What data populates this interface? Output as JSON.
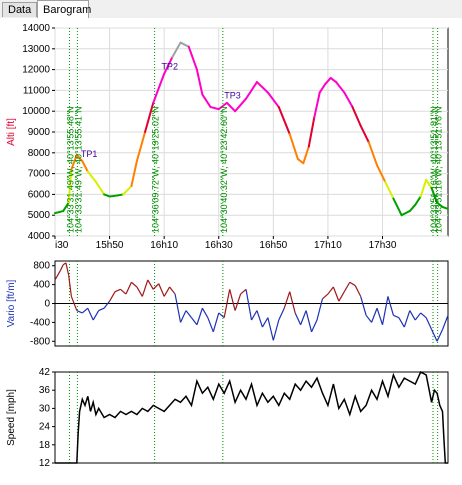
{
  "tabs": [
    {
      "label": "Data",
      "active": false
    },
    {
      "label": "Barogram",
      "active": true
    }
  ],
  "colors": {
    "low": "#00a000",
    "mid_low": "#d8f000",
    "mid": "#ff8000",
    "high": "#e00030",
    "higher": "#ff00c8",
    "peak": "#a0a0a0",
    "climb": "#a01818",
    "sink": "#1e32b4",
    "speed": "#000000",
    "event_line": "#009000",
    "tp_label": "#4000a0"
  },
  "chart_data": [
    {
      "type": "line",
      "name": "altitude",
      "ylabel": "Alti [ft]",
      "ylim": [
        4000,
        14000
      ],
      "yticks": [
        4000,
        5000,
        6000,
        7000,
        8000,
        9000,
        10000,
        11000,
        12000,
        13000,
        14000
      ],
      "xticks": [
        "i30",
        "15h50",
        "16h10",
        "16h30",
        "16h50",
        "17h10",
        "17h30"
      ],
      "grid": true,
      "x_minutes": [
        0,
        3,
        5,
        6,
        8,
        10,
        12,
        15,
        18,
        20,
        23,
        25,
        28,
        30,
        33,
        36,
        40,
        43,
        46,
        49,
        52,
        54,
        57,
        60,
        63,
        66,
        70,
        74,
        78,
        82,
        86,
        89,
        91,
        93,
        95,
        97,
        99,
        101,
        103,
        106,
        109,
        112,
        115,
        118,
        121,
        124,
        127,
        130,
        132,
        134,
        136,
        138,
        140,
        142,
        144
      ],
      "y_ft": [
        5100,
        5200,
        5600,
        7200,
        7900,
        7600,
        7100,
        6600,
        6000,
        5900,
        5950,
        6000,
        6400,
        7600,
        9000,
        10400,
        11800,
        12600,
        13300,
        13100,
        12000,
        10800,
        10200,
        10100,
        10400,
        10000,
        10600,
        11400,
        10900,
        10200,
        8900,
        7700,
        7500,
        8300,
        9700,
        10900,
        11300,
        11600,
        11400,
        10900,
        10200,
        9300,
        8500,
        7400,
        6600,
        5800,
        5000,
        5200,
        5500,
        5900,
        6700,
        6300,
        5600,
        5400,
        5300
      ],
      "event_lines": [
        {
          "x_minutes": 5.3,
          "label": "104°33'31.49\"W, 40°13'55.48\"N"
        },
        {
          "x_minutes": 8.2,
          "label": "104°33'31.49\"W, 40°13'55.41\"N"
        },
        {
          "x_minutes": 36.5,
          "label": "104°36'09.72\"W, 40°19'25.02\"N"
        },
        {
          "x_minutes": 61.5,
          "label": "104°30'40.32\"W, 40°23'42.60\"N"
        },
        {
          "x_minutes": 138.5,
          "label": "104°33'51.16\"W, 40°13'51.81\"N"
        },
        {
          "x_minutes": 140.2,
          "label": "104°33'51.16\"W, 40°13'51.76\"N"
        }
      ],
      "turnpoints": [
        {
          "label": "TP1",
          "x_minutes": 9.5,
          "y_ft": 7800
        },
        {
          "label": "TP2",
          "x_minutes": 39.0,
          "y_ft": 12000
        },
        {
          "label": "TP3",
          "x_minutes": 62.0,
          "y_ft": 10600
        }
      ]
    },
    {
      "type": "line",
      "name": "vario",
      "ylabel": "Vario [ft/m]",
      "ylim": [
        -900,
        900
      ],
      "yticks": [
        -800,
        -400,
        0,
        400,
        800
      ],
      "x_minutes": [
        0,
        2,
        3,
        4,
        5,
        6,
        8,
        10,
        12,
        14,
        16,
        18,
        20,
        22,
        24,
        26,
        28,
        30,
        32,
        34,
        36,
        38,
        40,
        42,
        44,
        46,
        48,
        50,
        52,
        54,
        56,
        58,
        60,
        62,
        64,
        66,
        68,
        70,
        72,
        74,
        76,
        78,
        80,
        82,
        84,
        86,
        88,
        90,
        92,
        94,
        96,
        98,
        100,
        102,
        104,
        106,
        108,
        110,
        112,
        114,
        116,
        118,
        120,
        122,
        124,
        126,
        128,
        130,
        132,
        134,
        136,
        138,
        140,
        142,
        144
      ],
      "y_ftpm": [
        500,
        700,
        820,
        860,
        600,
        150,
        -150,
        -200,
        -100,
        -350,
        -150,
        -100,
        50,
        250,
        300,
        200,
        450,
        350,
        150,
        500,
        300,
        420,
        150,
        350,
        200,
        -400,
        -150,
        -300,
        -450,
        -100,
        -300,
        -600,
        -200,
        -300,
        300,
        -150,
        200,
        300,
        -350,
        -150,
        -500,
        -300,
        -780,
        -350,
        -100,
        250,
        -200,
        -450,
        -150,
        -600,
        -350,
        100,
        200,
        350,
        50,
        250,
        450,
        380,
        150,
        -250,
        -400,
        -100,
        -450,
        150,
        -250,
        -300,
        -500,
        -150,
        -350,
        -200,
        -300,
        -550,
        -800,
        -550,
        -250
      ]
    },
    {
      "type": "line",
      "name": "speed",
      "ylabel": "Speed [mph]",
      "ylim": [
        12,
        42
      ],
      "yticks": [
        12,
        18,
        24,
        30,
        36,
        42
      ],
      "x_minutes": [
        0,
        8,
        8.5,
        9,
        10,
        11,
        12,
        13,
        14,
        15,
        16,
        18,
        20,
        22,
        24,
        26,
        28,
        30,
        32,
        34,
        36,
        38,
        40,
        42,
        44,
        46,
        48,
        50,
        52,
        54,
        56,
        58,
        60,
        62,
        64,
        66,
        68,
        70,
        72,
        74,
        76,
        78,
        80,
        82,
        84,
        86,
        88,
        90,
        92,
        94,
        96,
        98,
        100,
        102,
        104,
        106,
        108,
        110,
        112,
        114,
        116,
        118,
        120,
        122,
        124,
        126,
        128,
        130,
        132,
        134,
        136,
        138,
        139,
        140,
        141,
        142,
        142.5,
        143,
        144
      ],
      "y_mph": [
        12,
        12,
        22,
        29,
        33,
        31,
        34,
        29,
        32,
        28,
        30,
        27,
        28,
        27,
        29,
        28,
        29,
        28,
        30,
        29,
        31,
        30,
        29,
        31,
        33,
        32,
        34,
        31,
        39,
        35,
        37,
        33,
        38,
        35,
        39,
        32,
        36,
        33,
        38,
        31,
        35,
        32,
        34,
        31,
        35,
        33,
        38,
        36,
        39,
        37,
        40,
        35,
        31,
        38,
        30,
        33,
        28,
        34,
        29,
        31,
        36,
        33,
        39,
        34,
        41,
        37,
        40,
        39,
        38,
        42,
        41,
        32,
        36,
        35,
        31,
        29,
        20,
        12,
        12
      ]
    }
  ]
}
